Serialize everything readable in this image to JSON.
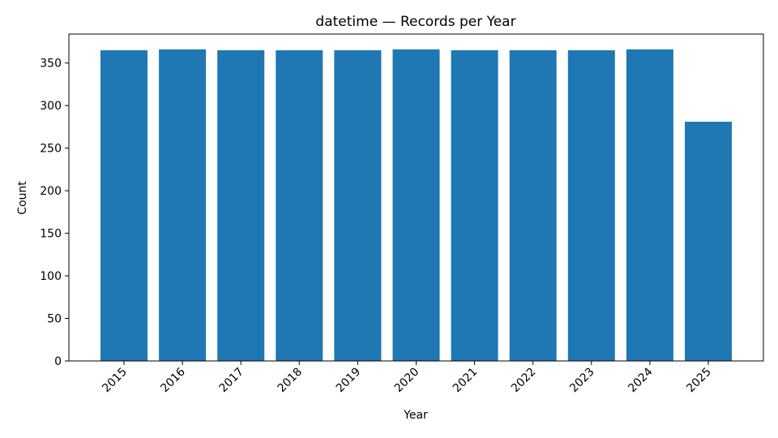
{
  "chart_data": {
    "type": "bar",
    "title": "datetime — Records per Year",
    "xlabel": "Year",
    "ylabel": "Count",
    "categories": [
      "2015",
      "2016",
      "2017",
      "2018",
      "2019",
      "2020",
      "2021",
      "2022",
      "2023",
      "2024",
      "2025"
    ],
    "values": [
      365,
      366,
      365,
      365,
      365,
      366,
      365,
      365,
      365,
      366,
      281
    ],
    "ylim": [
      0,
      384
    ],
    "yticks": [
      0,
      50,
      100,
      150,
      200,
      250,
      300,
      350
    ],
    "grid": false,
    "bar_color": "#1f77b4"
  }
}
